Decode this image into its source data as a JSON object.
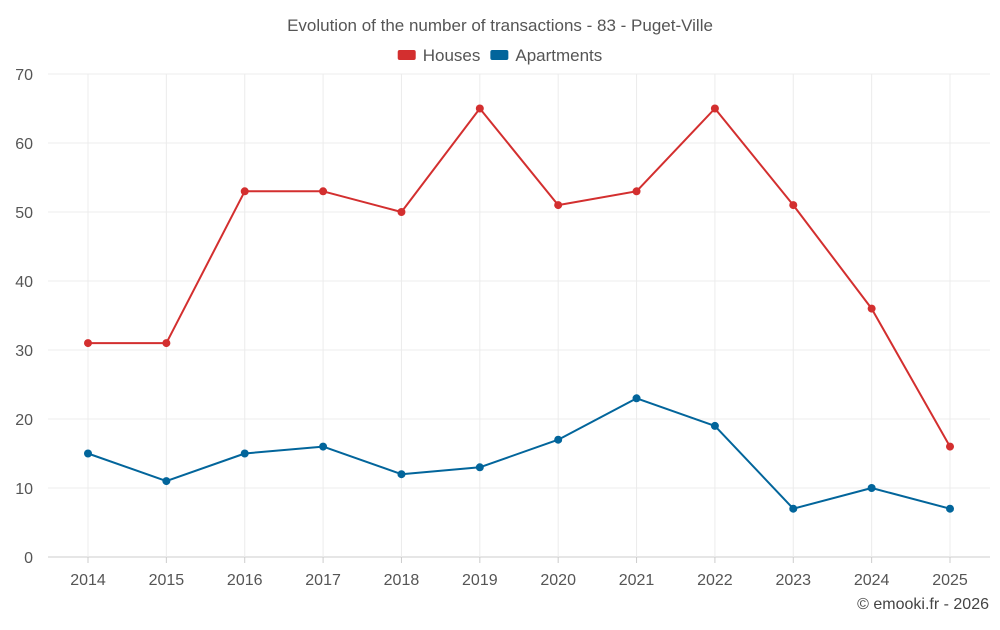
{
  "chart_data": {
    "type": "line",
    "title": "Evolution of the number of transactions - 83 - Puget-Ville",
    "xlabel": "",
    "ylabel": "",
    "categories": [
      "2014",
      "2015",
      "2016",
      "2017",
      "2018",
      "2019",
      "2020",
      "2021",
      "2022",
      "2023",
      "2024",
      "2025"
    ],
    "ylim": [
      0,
      70
    ],
    "yticks": [
      0,
      10,
      20,
      30,
      40,
      50,
      60,
      70
    ],
    "grid": true,
    "legend_position": "top-center",
    "series": [
      {
        "name": "Houses",
        "color": "#d32f2f",
        "values": [
          31,
          31,
          53,
          53,
          50,
          65,
          51,
          53,
          65,
          51,
          36,
          16
        ]
      },
      {
        "name": "Apartments",
        "color": "#02659b",
        "values": [
          15,
          11,
          15,
          16,
          12,
          13,
          17,
          23,
          19,
          7,
          10,
          7
        ]
      }
    ]
  },
  "credit": "© emooki.fr - 2026"
}
